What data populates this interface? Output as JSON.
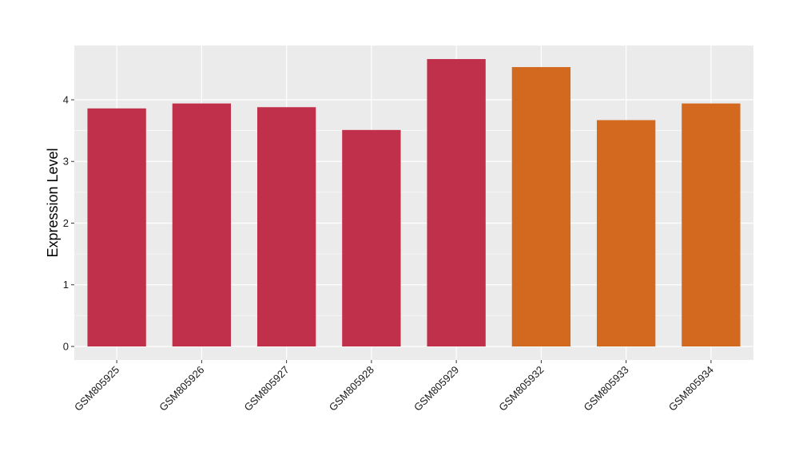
{
  "chart_data": {
    "type": "bar",
    "title": "",
    "xlabel": "",
    "ylabel": "Expression Level",
    "categories": [
      "GSM805925",
      "GSM805926",
      "GSM805927",
      "GSM805928",
      "GSM805929",
      "GSM805932",
      "GSM805933",
      "GSM805934"
    ],
    "values": [
      3.86,
      3.94,
      3.88,
      3.51,
      4.66,
      4.53,
      3.67,
      3.94
    ],
    "bar_colors": [
      "#c0304a",
      "#c0304a",
      "#c0304a",
      "#c0304a",
      "#c0304a",
      "#d2691e",
      "#d2691e",
      "#d2691e"
    ],
    "ylim": [
      -0.22,
      4.88
    ],
    "yticks": [
      0,
      1,
      2,
      3,
      4
    ],
    "grid": true,
    "legend": "none",
    "panel_background": "#ebebeb",
    "grid_color": "#ffffff"
  }
}
